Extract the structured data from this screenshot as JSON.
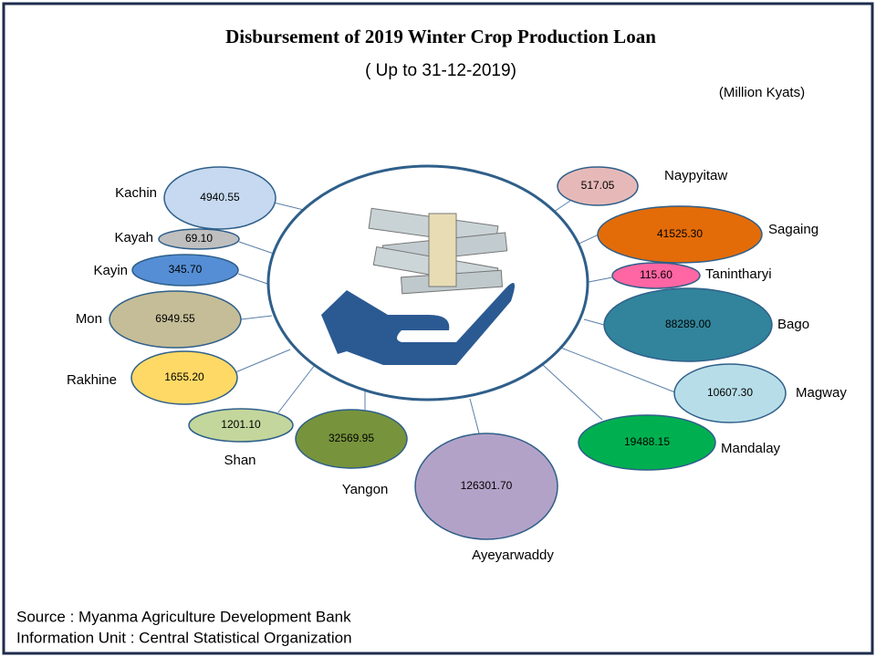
{
  "title": "Disbursement of 2019 Winter Crop Production Loan",
  "subtitle": "( Up to 31-12-2019)",
  "unit": "(Million Kyats)",
  "nodes": [
    {
      "name": "Kachin",
      "value": "4940.55"
    },
    {
      "name": "Kayah",
      "value": "69.10"
    },
    {
      "name": "Kayin",
      "value": "345.70"
    },
    {
      "name": "Mon",
      "value": "6949.55"
    },
    {
      "name": "Rakhine",
      "value": "1655.20"
    },
    {
      "name": "Shan",
      "value": "1201.10"
    },
    {
      "name": "Yangon",
      "value": "32569.95"
    },
    {
      "name": "Ayeyarwaddy",
      "value": "126301.70"
    },
    {
      "name": "Mandalay",
      "value": "19488.15"
    },
    {
      "name": "Magway",
      "value": "10607.30"
    },
    {
      "name": "Bago",
      "value": "88289.00"
    },
    {
      "name": "Tanintharyi",
      "value": "115.60"
    },
    {
      "name": "Sagaing",
      "value": "41525.30"
    },
    {
      "name": "Naypyitaw",
      "value": "517.05"
    }
  ],
  "source": "Source : Myanma Agriculture Development Bank",
  "info": "Information Unit : Central Statistical Organization"
}
